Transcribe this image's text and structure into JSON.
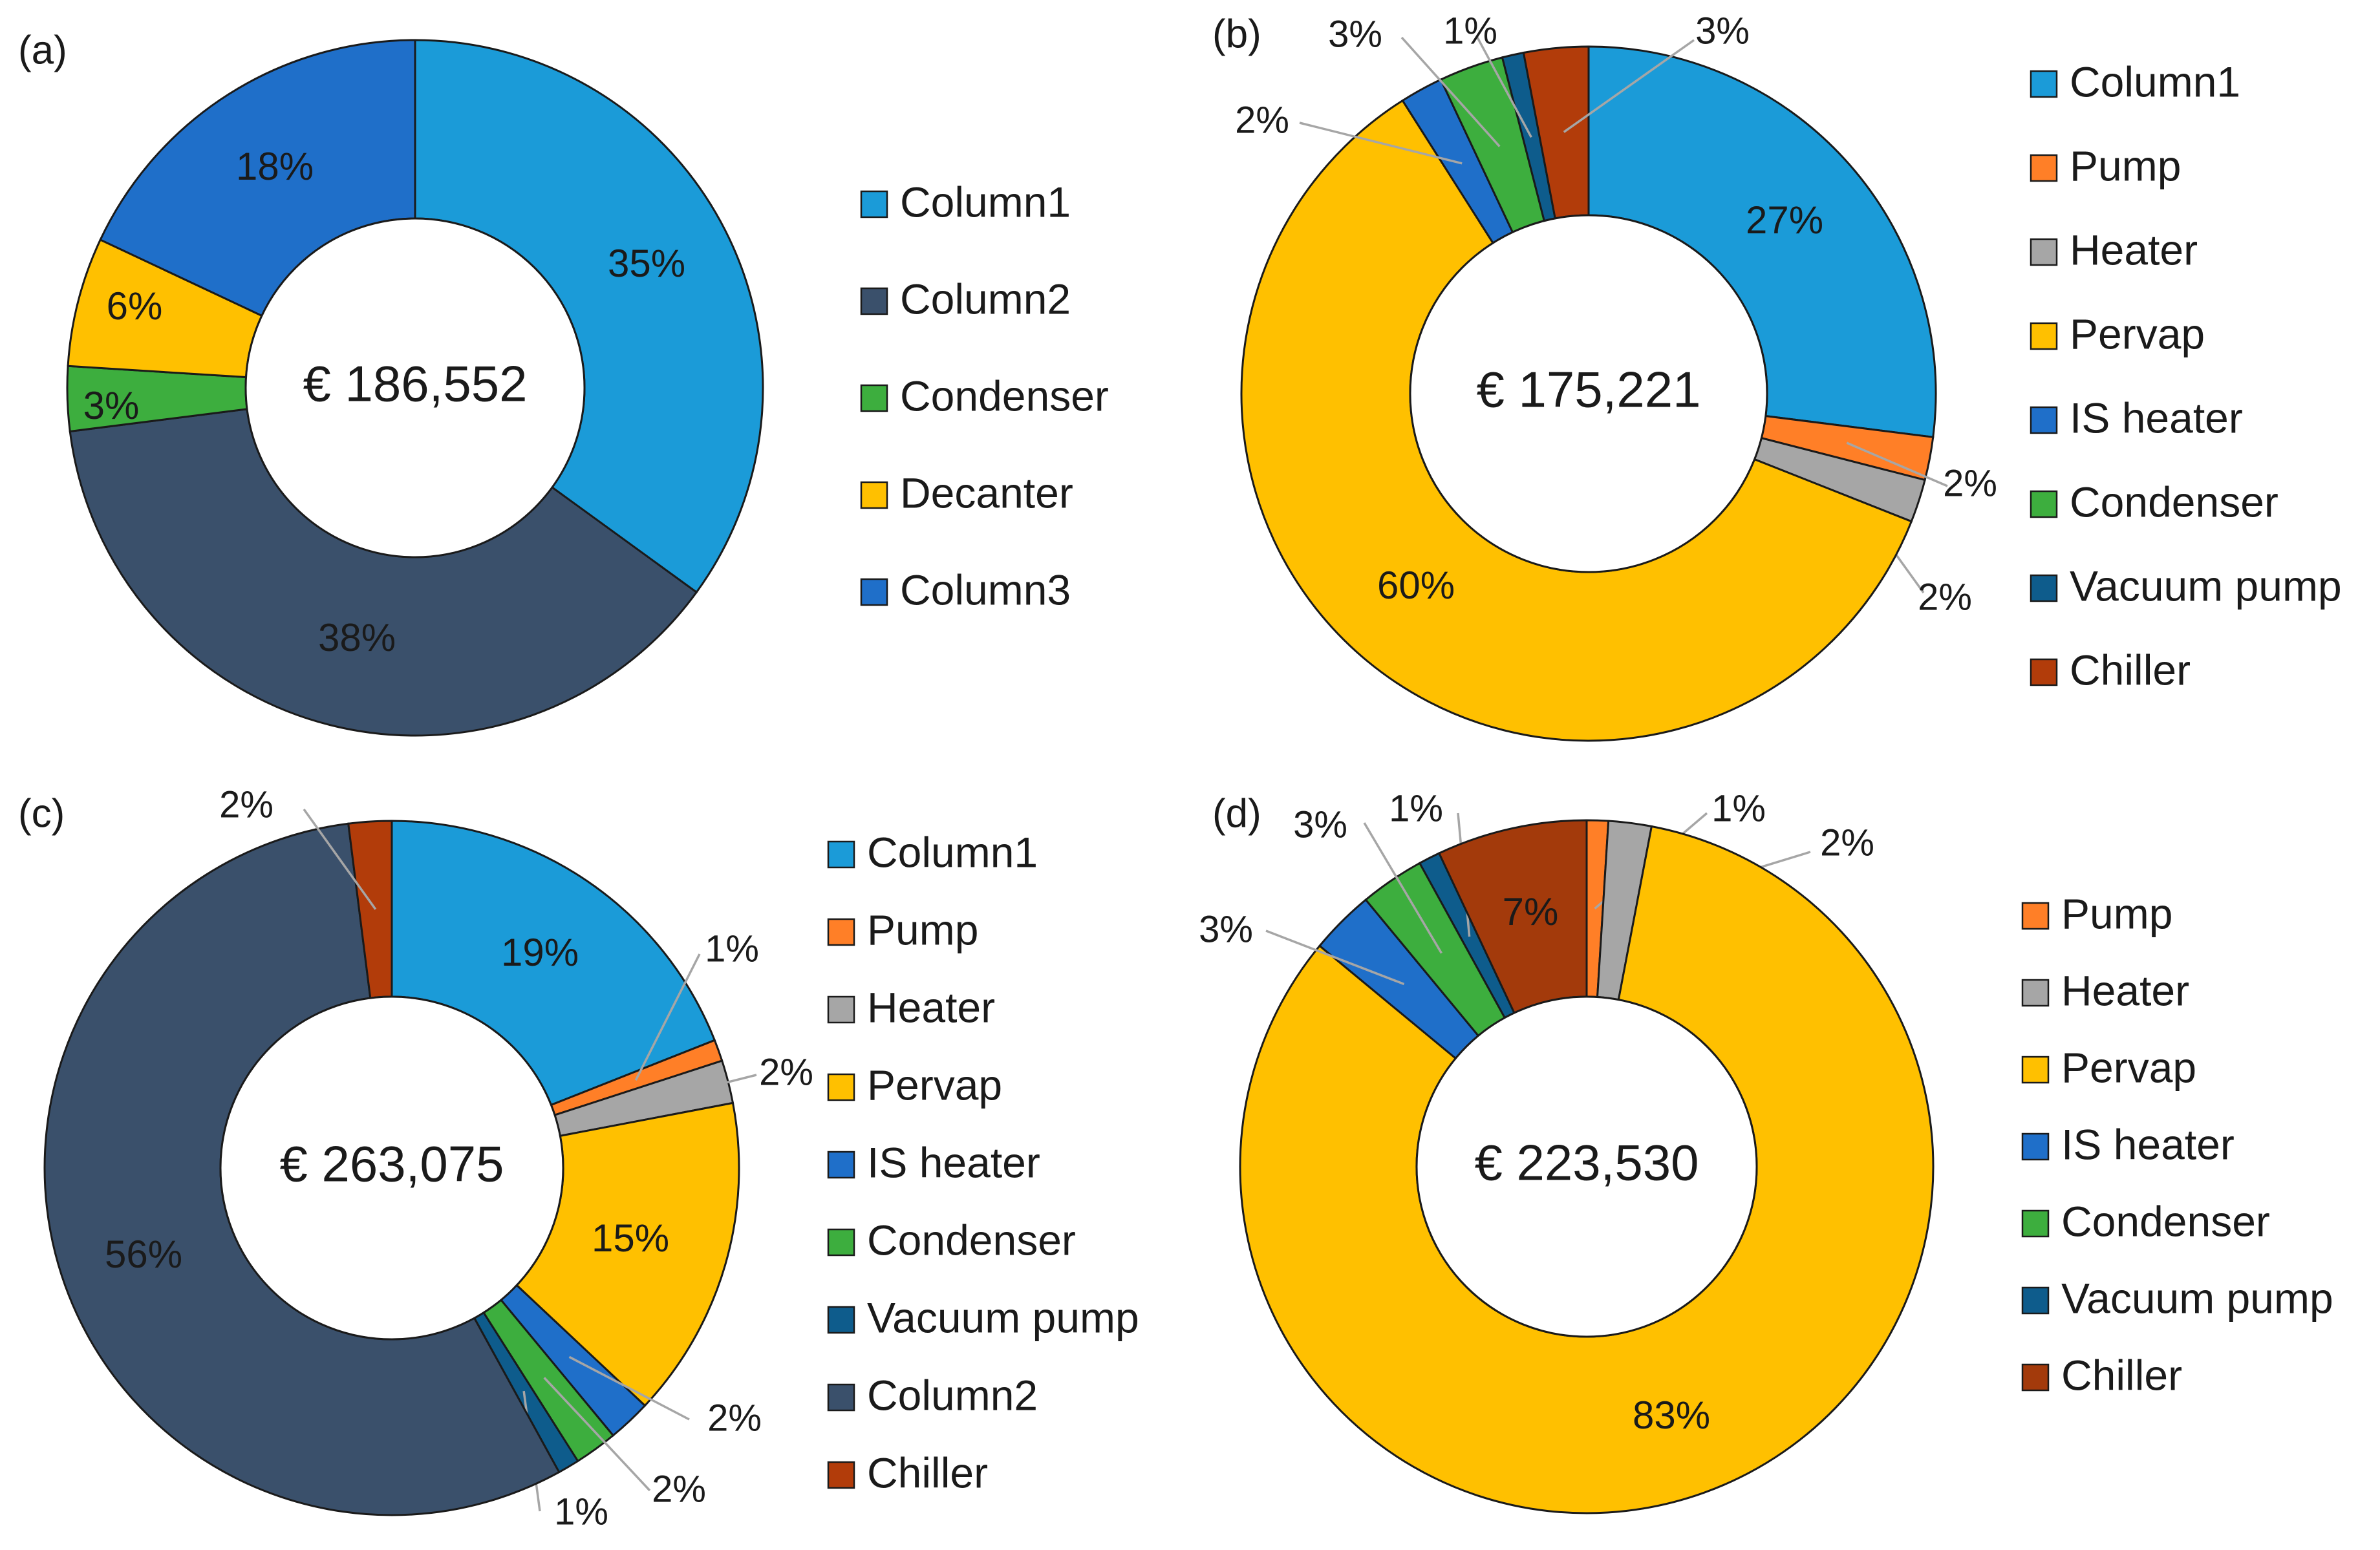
{
  "chart_data": [
    {
      "type": "donut",
      "panel_label": "(a)",
      "center_label": "€ 186,552",
      "slices": [
        {
          "name": "Column1",
          "value": 35,
          "label": "35%",
          "color": "#1B9BD8"
        },
        {
          "name": "Column2",
          "value": 38,
          "label": "38%",
          "color": "#3A506B"
        },
        {
          "name": "Condenser",
          "value": 3,
          "label": "3%",
          "color": "#3DAE3E"
        },
        {
          "name": "Decanter",
          "value": 6,
          "label": "6%",
          "color": "#FFC000"
        },
        {
          "name": "Column3",
          "value": 18,
          "label": "18%",
          "color": "#1F6FC9"
        }
      ],
      "legend": [
        "Column1",
        "Column2",
        "Condenser",
        "Decanter",
        "Column3"
      ]
    },
    {
      "type": "donut",
      "panel_label": "(b)",
      "center_label": "€ 175,221",
      "slices": [
        {
          "name": "Column1",
          "value": 27,
          "label": "27%",
          "color": "#1B9BD8"
        },
        {
          "name": "Pump",
          "value": 2,
          "label": "2%",
          "color": "#FF7F27"
        },
        {
          "name": "Heater",
          "value": 2,
          "label": "2%",
          "color": "#A6A6A6"
        },
        {
          "name": "Pervap",
          "value": 60,
          "label": "60%",
          "color": "#FFC000"
        },
        {
          "name": "IS heater",
          "value": 2,
          "label": "2%",
          "color": "#1F6FC9"
        },
        {
          "name": "Condenser",
          "value": 3,
          "label": "3%",
          "color": "#3DAE3E"
        },
        {
          "name": "Vacuum pump",
          "value": 1,
          "label": "1%",
          "color": "#0E5C8C"
        },
        {
          "name": "Chiller",
          "value": 3,
          "label": "3%",
          "color": "#B23C0A"
        }
      ],
      "legend": [
        "Column1",
        "Pump",
        "Heater",
        "Pervap",
        "IS heater",
        "Condenser",
        "Vacuum pump",
        "Chiller"
      ]
    },
    {
      "type": "donut",
      "panel_label": "(c)",
      "center_label": "€ 263,075",
      "slices": [
        {
          "name": "Column1",
          "value": 19,
          "label": "19%",
          "color": "#1B9BD8"
        },
        {
          "name": "Pump",
          "value": 1,
          "label": "1%",
          "color": "#FF7F27"
        },
        {
          "name": "Heater",
          "value": 2,
          "label": "2%",
          "color": "#A6A6A6"
        },
        {
          "name": "Pervap",
          "value": 15,
          "label": "15%",
          "color": "#FFC000"
        },
        {
          "name": "IS heater",
          "value": 2,
          "label": "2%",
          "color": "#1F6FC9"
        },
        {
          "name": "Condenser",
          "value": 2,
          "label": "2%",
          "color": "#3DAE3E"
        },
        {
          "name": "Vacuum pump",
          "value": 1,
          "label": "1%",
          "color": "#0E5C8C"
        },
        {
          "name": "Column2",
          "value": 56,
          "label": "56%",
          "color": "#3A506B"
        },
        {
          "name": "Chiller",
          "value": 2,
          "label": "2%",
          "color": "#B23C0A"
        }
      ],
      "legend": [
        "Column1",
        "Pump",
        "Heater",
        "Pervap",
        "IS heater",
        "Condenser",
        "Vacuum pump",
        "Column2",
        "Chiller"
      ]
    },
    {
      "type": "donut",
      "panel_label": "(d)",
      "center_label": "€ 223,530",
      "slices": [
        {
          "name": "Pump",
          "value": 1,
          "label": "1%",
          "color": "#FF7F27"
        },
        {
          "name": "Heater",
          "value": 2,
          "label": "2%",
          "color": "#A6A6A6"
        },
        {
          "name": "Pervap",
          "value": 83,
          "label": "83%",
          "color": "#FFC000"
        },
        {
          "name": "IS heater",
          "value": 3,
          "label": "3%",
          "color": "#1F6FC9"
        },
        {
          "name": "Condenser",
          "value": 3,
          "label": "3%",
          "color": "#3DAE3E"
        },
        {
          "name": "Vacuum pump",
          "value": 1,
          "label": "1%",
          "color": "#0E5C8C"
        },
        {
          "name": "Chiller",
          "value": 7,
          "label": "7%",
          "color": "#A33A0B"
        }
      ],
      "legend": [
        "Pump",
        "Heater",
        "Pervap",
        "IS heater",
        "Condenser",
        "Vacuum pump",
        "Chiller"
      ]
    }
  ]
}
